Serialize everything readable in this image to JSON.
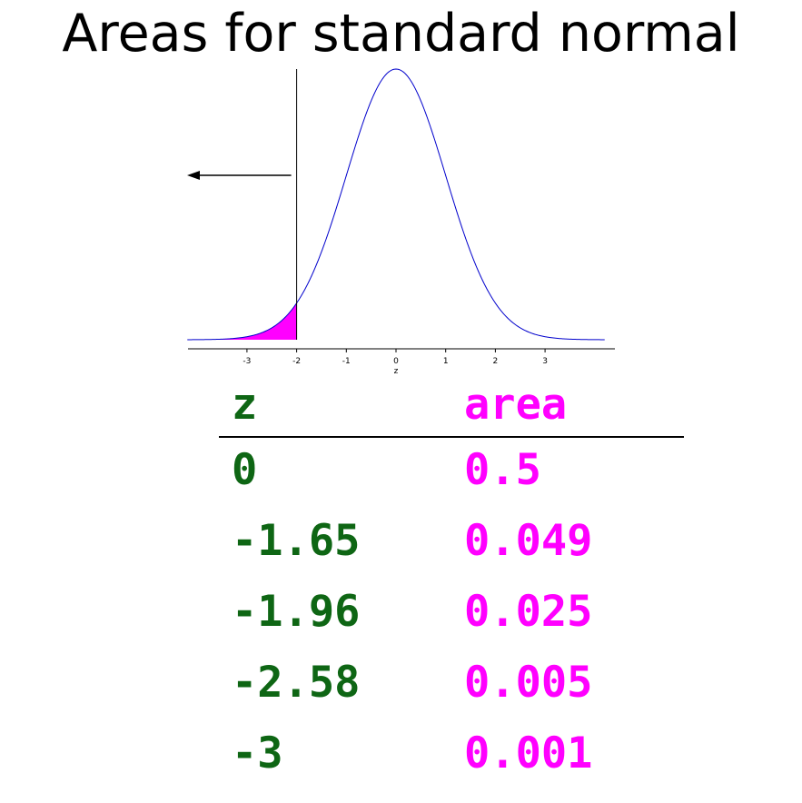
{
  "title": "Areas for standard normal",
  "colors": {
    "curve": "#0000cc",
    "shade": "#ff00ff",
    "z_text": "#0e6614",
    "area_text": "#ff00ff",
    "axis": "#000000"
  },
  "chart_data": {
    "type": "area",
    "function": "standard normal density",
    "xlabel": "z",
    "ylabel": "",
    "xlim": [
      -4.2,
      4.2
    ],
    "x_ticks": [
      -3,
      -2,
      -1,
      0,
      1,
      2,
      3
    ],
    "shaded_region": {
      "from": -4.2,
      "to": -2
    },
    "cutoff_line_x": -2,
    "arrow_direction": "left"
  },
  "table": {
    "header": {
      "z": "z",
      "area": "area"
    },
    "rows": [
      {
        "z": "0",
        "area": "0.5"
      },
      {
        "z": "-1.65",
        "area": "0.049"
      },
      {
        "z": "-1.96",
        "area": "0.025"
      },
      {
        "z": "-2.58",
        "area": "0.005"
      },
      {
        "z": "-3",
        "area": "0.001"
      }
    ]
  }
}
